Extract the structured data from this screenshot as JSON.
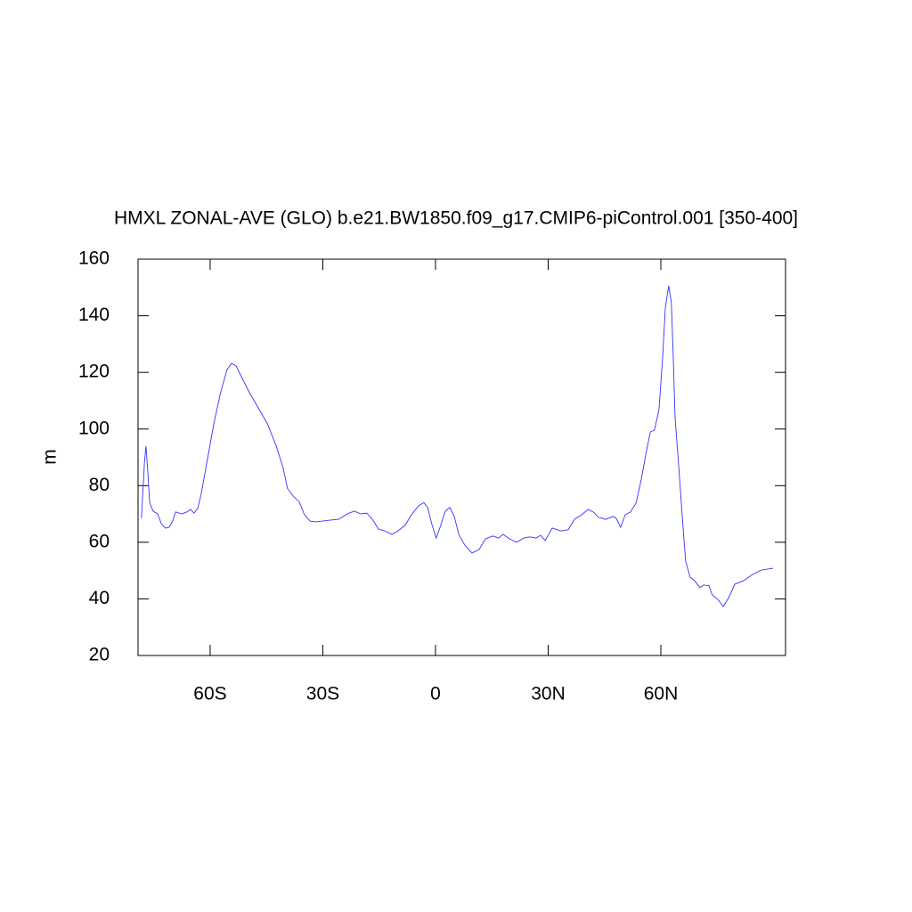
{
  "chart_data": {
    "type": "line",
    "title": "HMXL ZONAL-AVE (GLO) b.e21.BW1850.f09_g17.CMIP6-piControl.001 [350-400]",
    "y_label": "m",
    "color": "#3333ff",
    "x": [
      -78.3,
      -77.5,
      -77.1,
      -76.6,
      -76.1,
      -75.2,
      -74.0,
      -73.0,
      -71.9,
      -70.9,
      -70.0,
      -69.2,
      -67.6,
      -66.2,
      -65.2,
      -64.3,
      -63.3,
      -62.4,
      -60.9,
      -59.0,
      -57.2,
      -55.5,
      -54.3,
      -53.1,
      -51.5,
      -49.6,
      -47.2,
      -44.8,
      -42.4,
      -40.6,
      -39.4,
      -37.7,
      -36.3,
      -34.9,
      -33.4,
      -31.8,
      -30.1,
      -28.2,
      -25.8,
      -23.5,
      -21.6,
      -19.9,
      -18.3,
      -16.8,
      -15.2,
      -13.5,
      -11.6,
      -10.0,
      -8.1,
      -6.4,
      -4.5,
      -3.1,
      -2.1,
      -0.9,
      0.2,
      1.4,
      2.6,
      3.8,
      5.0,
      6.2,
      7.8,
      9.7,
      11.6,
      13.3,
      15.2,
      16.8,
      18.0,
      19.7,
      21.6,
      23.5,
      25.1,
      26.8,
      28.0,
      29.2,
      31.1,
      33.4,
      35.3,
      37.0,
      38.9,
      40.6,
      42.0,
      43.4,
      45.3,
      47.2,
      48.1,
      49.3,
      50.5,
      51.9,
      53.4,
      54.8,
      56.0,
      57.2,
      58.3,
      59.5,
      60.5,
      61.2,
      62.1,
      62.8,
      63.3,
      63.8,
      64.7,
      65.7,
      66.6,
      67.8,
      69.0,
      70.4,
      71.4,
      72.8,
      73.7,
      75.2,
      76.6,
      78.0,
      79.7,
      82.0,
      84.4,
      86.8,
      89.9
    ],
    "values": [
      68.5,
      88,
      94,
      85,
      74,
      71,
      70,
      66.6,
      65,
      65.3,
      67.5,
      70.7,
      70,
      70.7,
      71.6,
      70.3,
      72,
      77,
      88,
      102,
      113,
      121,
      123.2,
      122.3,
      118,
      113,
      107.5,
      102,
      94,
      86.4,
      79,
      76,
      74.4,
      69.7,
      67.5,
      67.2,
      67.5,
      67.8,
      68.1,
      70,
      71,
      70,
      70.3,
      68.1,
      64.7,
      64,
      62.8,
      64,
      66,
      69.7,
      72.9,
      74,
      72.3,
      66,
      61.5,
      66,
      71,
      72.3,
      69.1,
      62.8,
      59,
      56.2,
      57.4,
      61.2,
      62.2,
      61.5,
      62.8,
      61.2,
      60,
      61.5,
      61.9,
      61.5,
      62.5,
      60.6,
      65,
      64,
      64.4,
      68.1,
      69.7,
      71.6,
      70.7,
      68.8,
      68.1,
      69.1,
      68.5,
      65.3,
      69.7,
      70.7,
      73.8,
      82.3,
      91.1,
      99,
      99.6,
      106.8,
      125.7,
      143,
      150.6,
      144.6,
      125.7,
      103.7,
      88,
      69.1,
      53.4,
      47.7,
      46.4,
      44,
      44.9,
      44.6,
      41.4,
      39.8,
      37.3,
      40.2,
      45.2,
      46.4,
      48.6,
      50.2,
      50.8
    ],
    "xlim": [
      -79.2,
      93.2
    ],
    "xticks": [
      {
        "value": -60,
        "label": "60S"
      },
      {
        "value": -30,
        "label": "30S"
      },
      0,
      {
        "value": 30,
        "label": "30N"
      },
      {
        "value": 60,
        "label": "60N"
      }
    ],
    "ylim": [
      20,
      160
    ],
    "yticks": [
      20,
      40,
      60,
      80,
      100,
      120,
      140,
      160
    ]
  }
}
